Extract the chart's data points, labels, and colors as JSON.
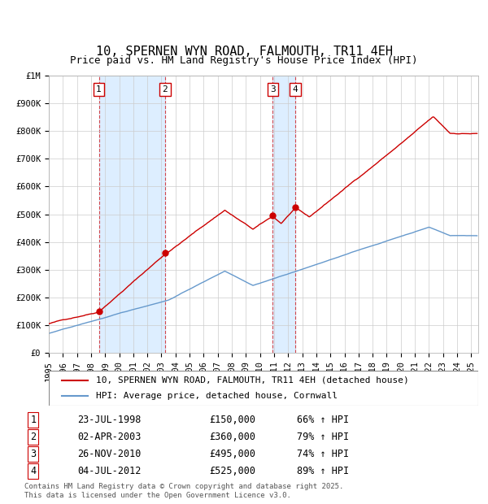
{
  "title": "10, SPERNEN WYN ROAD, FALMOUTH, TR11 4EH",
  "subtitle": "Price paid vs. HM Land Registry's House Price Index (HPI)",
  "legend_line1": "10, SPERNEN WYN ROAD, FALMOUTH, TR11 4EH (detached house)",
  "legend_line2": "HPI: Average price, detached house, Cornwall",
  "footnote": "Contains HM Land Registry data © Crown copyright and database right 2025.\nThis data is licensed under the Open Government Licence v3.0.",
  "transactions": [
    {
      "num": 1,
      "date": "23-JUL-1998",
      "price": 150000,
      "hpi_pct": "66% ↑ HPI"
    },
    {
      "num": 2,
      "date": "02-APR-2003",
      "price": 360000,
      "hpi_pct": "79% ↑ HPI"
    },
    {
      "num": 3,
      "date": "26-NOV-2010",
      "price": 495000,
      "hpi_pct": "74% ↑ HPI"
    },
    {
      "num": 4,
      "date": "04-JUL-2012",
      "price": 525000,
      "hpi_pct": "89% ↑ HPI"
    }
  ],
  "transaction_dates_decimal": [
    1998.554,
    2003.249,
    2010.899,
    2012.503
  ],
  "ylim": [
    0,
    1000000
  ],
  "xlim_start": 1995.0,
  "xlim_end": 2025.5,
  "red_color": "#cc0000",
  "blue_color": "#6699cc",
  "shade_color": "#ddeeff",
  "grid_color": "#cccccc",
  "background_color": "#ffffff",
  "title_fontsize": 11,
  "subtitle_fontsize": 9,
  "tick_fontsize": 7.5,
  "legend_fontsize": 8,
  "table_fontsize": 8.5
}
